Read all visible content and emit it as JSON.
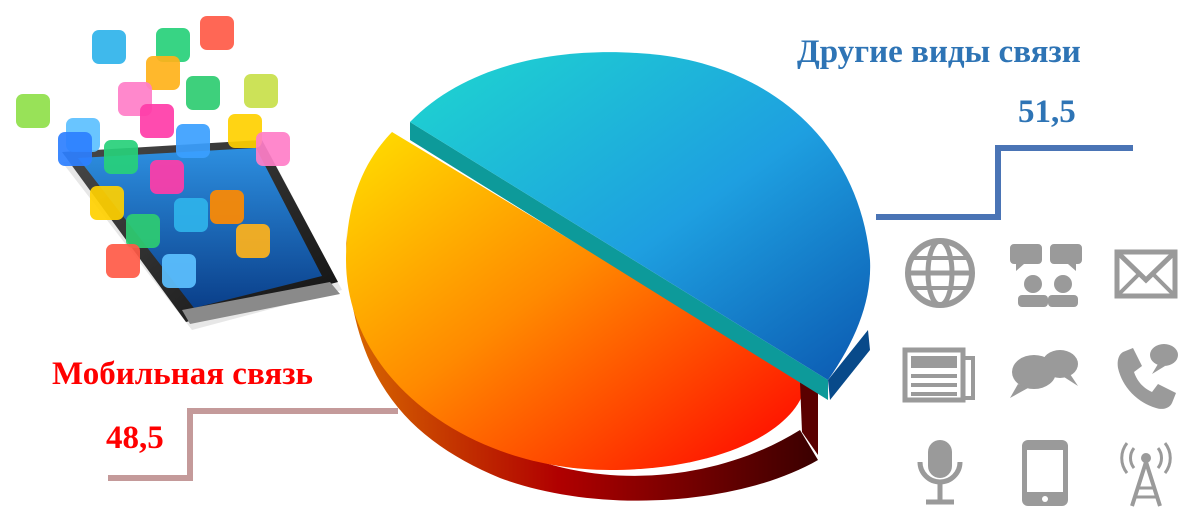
{
  "chart_data": {
    "type": "pie",
    "style": "3d-exploded",
    "slices": [
      {
        "label": "Другие виды связи",
        "value": 51.5,
        "value_label": "51,5",
        "color": "#2e74b5"
      },
      {
        "label": "Мобильная связь",
        "value": 48.5,
        "value_label": "48,5",
        "color": "#ff0000"
      }
    ],
    "legend": "none",
    "leader_line_colors": {
      "other": "#4a74b5",
      "mobile": "#c49a9a"
    }
  },
  "decor": {
    "left_illustration": "smartphone-with-app-icons",
    "right_icons": [
      "globe-icon",
      "people-talking-icon",
      "envelope-icon",
      "newspaper-icon",
      "chat-bubbles-icon",
      "phone-call-icon",
      "microphone-icon",
      "mobile-phone-icon",
      "radio-tower-icon"
    ],
    "icon_color": "#9a9a9a"
  }
}
